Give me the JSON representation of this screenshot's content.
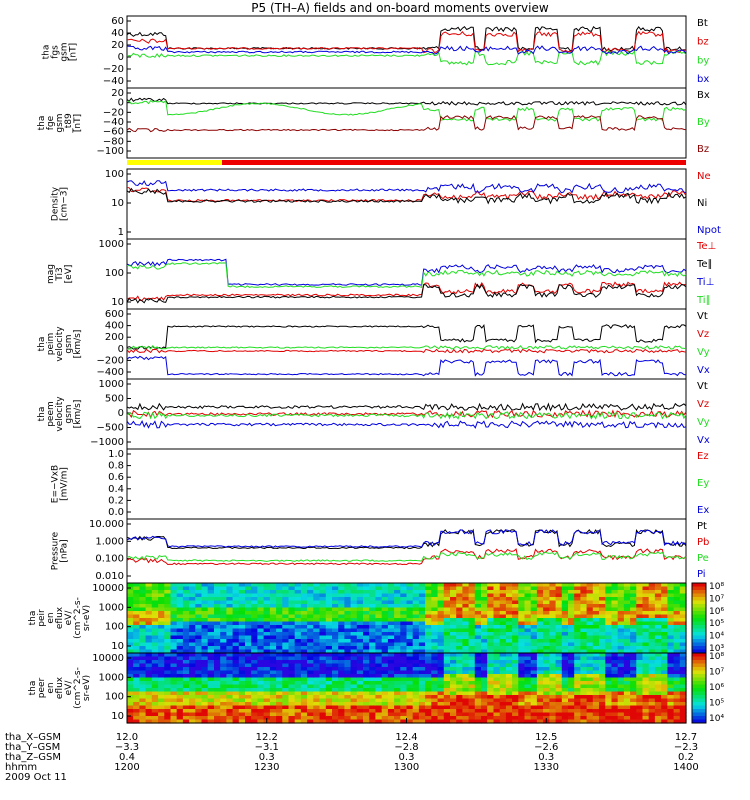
{
  "title": "P5 (TH–A) fields and on-board moments overview",
  "date_label": "2009 Oct 11",
  "colors": {
    "black": "#000000",
    "red": "#e00000",
    "green": "#22dd22",
    "blue": "#0000dd",
    "darkred": "#8b0000",
    "yellow": "#ffff00",
    "ion_bar": "#ee0000"
  },
  "chart_data": [
    {
      "id": "fgs",
      "type": "line",
      "ylabel": [
        "tha",
        "fgs",
        "gsm",
        "[nT]"
      ],
      "yticks": [
        "60",
        "40",
        "20",
        "0",
        "−20",
        "−40"
      ],
      "ylim": [
        -50,
        65
      ],
      "series": [
        {
          "name": "Bt",
          "color": "#000000"
        },
        {
          "name": "bz",
          "color": "#e00000"
        },
        {
          "name": "by",
          "color": "#22dd22"
        },
        {
          "name": "bx",
          "color": "#0000dd"
        }
      ]
    },
    {
      "id": "fge",
      "type": "line",
      "ylabel": [
        "tha",
        "fge",
        "gsm",
        "_t89",
        "[nT]"
      ],
      "yticks": [
        "20",
        "0",
        "−20",
        "−40",
        "−60",
        "−80",
        "−100"
      ],
      "ylim": [
        -105,
        25
      ],
      "series": [
        {
          "name": "Bx",
          "color": "#000000"
        },
        {
          "name": "By",
          "color": "#22dd22"
        },
        {
          "name": "Bz",
          "color": "#8b0000"
        }
      ]
    },
    {
      "id": "density",
      "type": "line",
      "ylabel": [
        "Density",
        "[cm−3]"
      ],
      "yticks": [
        "100",
        "10",
        "1"
      ],
      "ylim": [
        0.3,
        200
      ],
      "scale": "log",
      "series": [
        {
          "name": "Ne",
          "color": "#e00000"
        },
        {
          "name": "Ni",
          "color": "#000000"
        },
        {
          "name": "Npot",
          "color": "#0000dd"
        }
      ]
    },
    {
      "id": "temp",
      "type": "line",
      "ylabel": [
        "mag",
        "Ti3",
        "[eV]"
      ],
      "yticks": [
        "1000",
        "100",
        "10"
      ],
      "ylim": [
        5,
        5000
      ],
      "scale": "log",
      "series": [
        {
          "name": "Te⊥",
          "color": "#e00000"
        },
        {
          "name": "Te∥",
          "color": "#000000"
        },
        {
          "name": "Ti⊥",
          "color": "#0000dd"
        },
        {
          "name": "Ti∥",
          "color": "#22dd22"
        }
      ]
    },
    {
      "id": "peim",
      "type": "line",
      "ylabel": [
        "tha",
        "peim",
        "velocity",
        "gsm",
        "[km/s]"
      ],
      "yticks": [
        "600",
        "400",
        "200",
        "0",
        "−200",
        "−400"
      ],
      "ylim": [
        -480,
        650
      ],
      "series": [
        {
          "name": "Vt",
          "color": "#000000"
        },
        {
          "name": "Vz",
          "color": "#e00000"
        },
        {
          "name": "Vy",
          "color": "#22dd22"
        },
        {
          "name": "Vx",
          "color": "#0000dd"
        }
      ]
    },
    {
      "id": "peem",
      "type": "line",
      "ylabel": [
        "tha",
        "peem",
        "velocity",
        "gsm",
        "[km/s]"
      ],
      "yticks": [
        "1000",
        "500",
        "0",
        "−500",
        "−1000"
      ],
      "ylim": [
        -1150,
        1150
      ],
      "series": [
        {
          "name": "Vt",
          "color": "#000000"
        },
        {
          "name": "Vz",
          "color": "#e00000"
        },
        {
          "name": "Vy",
          "color": "#22dd22"
        },
        {
          "name": "Vx",
          "color": "#0000dd"
        }
      ]
    },
    {
      "id": "efield",
      "type": "line",
      "ylabel": [
        "E=−VxB",
        "[mV/m]"
      ],
      "yticks": [
        "1.0",
        "0.8",
        "0.6",
        "0.4",
        "0.2",
        "0.0"
      ],
      "ylim": [
        0,
        1
      ],
      "series": [
        {
          "name": "Ez",
          "color": "#e00000"
        },
        {
          "name": "Ey",
          "color": "#22dd22"
        },
        {
          "name": "Ex",
          "color": "#0000dd"
        }
      ]
    },
    {
      "id": "pressure",
      "type": "line",
      "ylabel": [
        "Pressure",
        "[nPa]"
      ],
      "yticks": [
        "10.000",
        "1.000",
        "0.100",
        "0.010"
      ],
      "ylim": [
        0.004,
        15
      ],
      "scale": "log",
      "series": [
        {
          "name": "Pt",
          "color": "#000000"
        },
        {
          "name": "Pb",
          "color": "#e00000"
        },
        {
          "name": "Pe",
          "color": "#22dd22"
        },
        {
          "name": "Pi",
          "color": "#0000dd"
        }
      ]
    },
    {
      "id": "peir",
      "type": "heatmap",
      "ylabel": [
        "tha",
        "peir",
        "en",
        "eflux",
        "eV/",
        "(cm^2-s-",
        "sr-eV)"
      ],
      "yticks": [
        "10000",
        "1000",
        "100",
        "10"
      ],
      "ylim": [
        5,
        30000
      ],
      "scale": "log",
      "colorbar": {
        "ticks": [
          "10⁸",
          "10⁷",
          "10⁶",
          "10⁵",
          "10⁴",
          "10³"
        ]
      }
    },
    {
      "id": "peer",
      "type": "heatmap",
      "ylabel": [
        "tha",
        "peer",
        "en",
        "eflux",
        "eV/",
        "(cm^2-s-",
        "sr-eV)"
      ],
      "yticks": [
        "10000",
        "1000",
        "100",
        "10"
      ],
      "ylim": [
        5,
        30000
      ],
      "scale": "log",
      "colorbar": {
        "ticks": [
          "10⁸",
          "10⁷",
          "10⁶",
          "10⁵",
          "10⁴"
        ]
      }
    }
  ],
  "x_axis": {
    "label_rows": [
      "tha_X–GSM",
      "tha_Y–GSM",
      "tha_Z–GSM",
      "hhmm"
    ],
    "columns": [
      {
        "values": [
          "12.0",
          "−3.3",
          "0.4",
          "1200"
        ]
      },
      {
        "values": [
          "12.2",
          "−3.1",
          "0.3",
          "1230"
        ]
      },
      {
        "values": [
          "12.4",
          "−2.8",
          "0.3",
          "1300"
        ]
      },
      {
        "values": [
          "12.5",
          "−2.6",
          "0.3",
          "1330"
        ]
      },
      {
        "values": [
          "12.7",
          "−2.3",
          "0.2",
          "1400"
        ]
      }
    ]
  }
}
